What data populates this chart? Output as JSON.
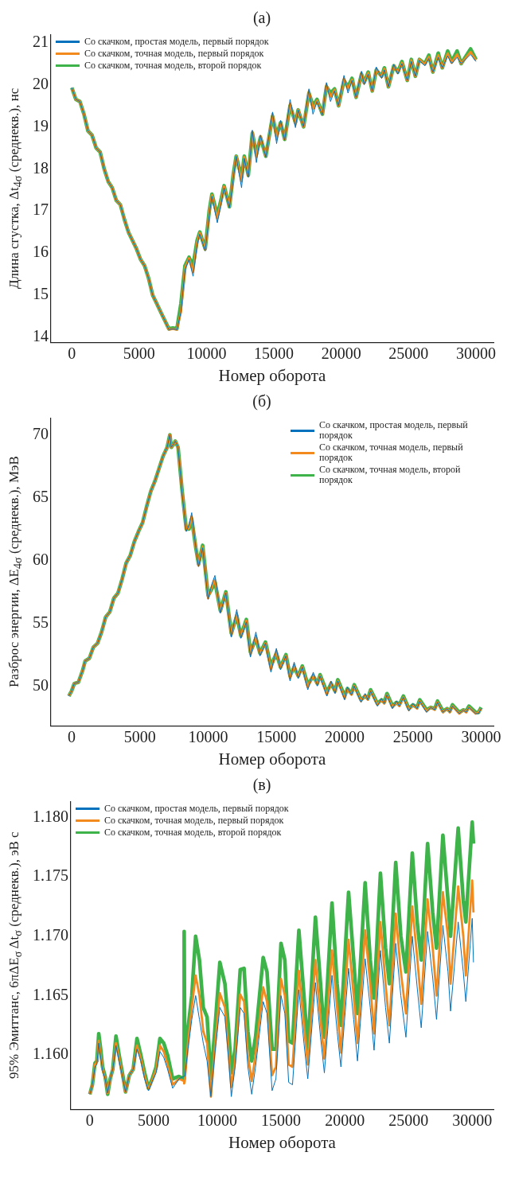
{
  "chart_data": [
    {
      "type": "line",
      "title": "(а)",
      "xlabel": "Номер оборота",
      "ylabel": "Длина сгустка, Δt$_{4σ}$  (среднекв.), нс",
      "xlim": [
        -1550,
        31300
      ],
      "ylim": [
        13.87,
        21.18
      ],
      "xticks": [
        0,
        5000,
        10000,
        15000,
        20000,
        25000,
        30000
      ],
      "yticks": [
        14,
        15,
        16,
        17,
        18,
        19,
        20,
        21
      ],
      "grid": false,
      "legend": "top left",
      "marker": "none",
      "line_style": "solid",
      "x": [
        0,
        300,
        600,
        900,
        1200,
        1500,
        1800,
        2100,
        2400,
        2700,
        3000,
        3300,
        3600,
        3900,
        4200,
        4500,
        4800,
        5100,
        5400,
        5700,
        6000,
        6300,
        6600,
        6900,
        7200,
        7500,
        7800,
        8100,
        8400,
        8700,
        9000,
        9300,
        9500,
        9900,
        10200,
        10400,
        10800,
        11100,
        11300,
        11700,
        12000,
        12200,
        12600,
        12800,
        13100,
        13400,
        13700,
        14000,
        14400,
        14900,
        15200,
        15500,
        15800,
        16200,
        16600,
        16800,
        17200,
        17600,
        17900,
        18200,
        18600,
        18900,
        19200,
        19500,
        19800,
        20200,
        20500,
        20800,
        21100,
        21500,
        21700,
        22000,
        22300,
        22600,
        23000,
        23200,
        23500,
        23900,
        24200,
        24500,
        24900,
        25200,
        25500,
        25800,
        26200,
        26500,
        26800,
        27200,
        27500,
        27900,
        28200,
        28600,
        28900,
        29600,
        30000
      ],
      "series": [
        {
          "name": "Со скачком, простая модель, первый порядок",
          "color": "#0072bd",
          "values": [
            19.93,
            19.65,
            19.6,
            19.3,
            18.9,
            18.8,
            18.5,
            18.4,
            18.0,
            17.7,
            17.55,
            17.25,
            17.15,
            16.8,
            16.5,
            16.3,
            16.1,
            15.85,
            15.7,
            15.4,
            15.0,
            14.8,
            14.6,
            14.4,
            14.18,
            14.2,
            14.18,
            14.6,
            15.6,
            15.85,
            15.45,
            16.2,
            16.45,
            16.05,
            16.9,
            17.35,
            16.72,
            17.2,
            17.55,
            17.08,
            17.8,
            18.3,
            17.55,
            18.25,
            17.8,
            18.92,
            18.15,
            18.8,
            18.28,
            19.35,
            18.6,
            19.15,
            18.68,
            19.65,
            18.98,
            19.4,
            19.0,
            19.9,
            19.3,
            19.6,
            19.28,
            20.05,
            19.6,
            19.85,
            19.5,
            20.22,
            19.8,
            20.1,
            19.7,
            20.32,
            20.0,
            20.25,
            19.85,
            20.42,
            20.15,
            20.35,
            19.95,
            20.48,
            20.25,
            20.5,
            20.1,
            20.55,
            20.2,
            20.58,
            20.45,
            20.62,
            20.3,
            20.65,
            20.4,
            20.68,
            20.5,
            20.65,
            20.5,
            20.72,
            20.55
          ]
        },
        {
          "name": "Со скачком, точная модель, первый порядок",
          "color": "#f28a1e",
          "values": [
            19.93,
            19.65,
            19.6,
            19.3,
            18.9,
            18.8,
            18.5,
            18.4,
            18.0,
            17.7,
            17.55,
            17.25,
            17.15,
            16.8,
            16.5,
            16.3,
            16.1,
            15.85,
            15.7,
            15.4,
            15.0,
            14.8,
            14.6,
            14.4,
            14.18,
            14.2,
            14.18,
            14.6,
            15.65,
            15.88,
            15.55,
            16.25,
            16.48,
            16.08,
            16.95,
            17.38,
            16.82,
            17.25,
            17.58,
            17.1,
            17.85,
            18.3,
            17.7,
            18.28,
            17.83,
            18.88,
            18.28,
            18.78,
            18.3,
            19.3,
            18.7,
            19.12,
            18.7,
            19.55,
            19.05,
            19.4,
            19.0,
            19.85,
            19.42,
            19.62,
            19.3,
            20.0,
            19.7,
            19.88,
            19.5,
            20.15,
            19.88,
            20.12,
            19.7,
            20.28,
            20.03,
            20.28,
            19.85,
            20.38,
            20.18,
            20.38,
            19.95,
            20.46,
            20.28,
            20.52,
            20.1,
            20.58,
            20.2,
            20.6,
            20.48,
            20.66,
            20.3,
            20.7,
            20.4,
            20.74,
            20.52,
            20.72,
            20.5,
            20.78,
            20.58
          ]
        },
        {
          "name": "Со скачком, точная модель, второй порядок",
          "color": "#3db34a",
          "values": [
            19.93,
            19.65,
            19.6,
            19.3,
            18.9,
            18.8,
            18.5,
            18.4,
            18.0,
            17.7,
            17.55,
            17.25,
            17.15,
            16.8,
            16.5,
            16.3,
            16.1,
            15.85,
            15.7,
            15.4,
            15.0,
            14.8,
            14.6,
            14.4,
            14.2,
            14.22,
            14.2,
            14.8,
            15.7,
            15.9,
            15.7,
            16.3,
            16.5,
            16.1,
            17.0,
            17.4,
            16.9,
            17.3,
            17.6,
            17.1,
            17.9,
            18.3,
            17.8,
            18.3,
            17.85,
            18.85,
            18.35,
            18.75,
            18.3,
            19.25,
            18.8,
            19.1,
            18.7,
            19.5,
            19.1,
            19.4,
            19.0,
            19.8,
            19.5,
            19.65,
            19.3,
            19.95,
            19.8,
            19.9,
            19.5,
            20.1,
            19.95,
            20.15,
            19.7,
            20.25,
            20.05,
            20.3,
            19.85,
            20.35,
            20.2,
            20.4,
            19.95,
            20.45,
            20.3,
            20.55,
            20.1,
            20.6,
            20.2,
            20.6,
            20.5,
            20.7,
            20.3,
            20.75,
            20.4,
            20.8,
            20.55,
            20.8,
            20.5,
            20.85,
            20.6
          ]
        }
      ]
    },
    {
      "type": "line",
      "title": "(б)",
      "xlabel": "Номер оборота",
      "ylabel": "Разброс энергии, ΔE$_{4σ}$  (среднекв.), МэВ",
      "xlim": [
        -1510,
        30900
      ],
      "ylim": [
        46.8,
        71.3
      ],
      "xticks": [
        0,
        5000,
        10000,
        15000,
        20000,
        25000,
        30000
      ],
      "yticks": [
        50,
        55,
        60,
        65,
        70
      ],
      "grid": false,
      "legend": "top right",
      "marker": "none",
      "line_style": "solid",
      "x": [
        -200,
        0,
        200,
        500,
        800,
        1000,
        1300,
        1600,
        1900,
        2200,
        2500,
        2800,
        3100,
        3400,
        3700,
        4000,
        4300,
        4600,
        4900,
        5200,
        5500,
        5800,
        6100,
        6400,
        6700,
        7000,
        7200,
        7300,
        7500,
        7600,
        7800,
        8100,
        8400,
        8600,
        8800,
        9100,
        9300,
        9600,
        10000,
        10300,
        10500,
        10900,
        11300,
        11700,
        12100,
        12400,
        12800,
        13100,
        13500,
        13800,
        14200,
        14600,
        15000,
        15300,
        15700,
        16000,
        16300,
        16600,
        16900,
        17300,
        17700,
        18000,
        18200,
        18700,
        19000,
        19300,
        19500,
        20000,
        20200,
        20500,
        20700,
        21200,
        21500,
        21700,
        21900,
        22400,
        22700,
        22900,
        23100,
        23500,
        23800,
        24000,
        24300,
        24700,
        25000,
        25300,
        25500,
        26000,
        26300,
        26600,
        26800,
        27200,
        27500,
        27700,
        27900,
        28400,
        28700,
        28900,
        29100,
        29600,
        29800,
        30000
      ],
      "series": [
        {
          "name": "Со скачком, простая модель, первый порядок",
          "color": "#0072bd",
          "values": [
            49.2,
            49.6,
            50.2,
            50.3,
            51.2,
            52.0,
            52.2,
            53.1,
            53.4,
            54.3,
            55.5,
            55.9,
            57.0,
            57.4,
            58.5,
            59.8,
            60.4,
            61.5,
            62.3,
            63.0,
            64.3,
            65.5,
            66.3,
            67.3,
            68.3,
            69.0,
            70.0,
            69.0,
            69.3,
            69.5,
            69.0,
            65.3,
            62.3,
            62.8,
            63.8,
            61.0,
            59.5,
            61.0,
            56.9,
            58.2,
            58.8,
            55.8,
            57.4,
            53.9,
            56.1,
            53.8,
            55.1,
            52.3,
            54.3,
            52.4,
            53.4,
            51.1,
            53.0,
            51.3,
            52.4,
            50.4,
            51.9,
            50.6,
            51.5,
            49.7,
            51.1,
            50.0,
            50.8,
            49.2,
            50.4,
            49.4,
            50.4,
            48.9,
            49.9,
            49.3,
            50.0,
            48.7,
            49.4,
            48.9,
            49.6,
            48.4,
            49.0,
            48.6,
            49.3,
            48.2,
            48.8,
            48.4,
            49.1,
            48.0,
            48.6,
            48.2,
            48.8,
            47.9,
            48.3,
            48.1,
            48.7,
            47.9,
            48.2,
            47.9,
            48.4,
            47.8,
            48.1,
            47.9,
            48.3,
            47.8,
            47.8,
            48.2
          ]
        },
        {
          "name": "Со скачком, точная модель, первый порядок",
          "color": "#f28a1e",
          "values": [
            49.2,
            49.6,
            50.2,
            50.3,
            51.2,
            52.0,
            52.2,
            53.1,
            53.4,
            54.3,
            55.5,
            55.9,
            57.0,
            57.4,
            58.5,
            59.8,
            60.4,
            61.5,
            62.3,
            63.0,
            64.3,
            65.5,
            66.3,
            67.3,
            68.3,
            69.0,
            70.0,
            69.0,
            69.3,
            69.5,
            69.0,
            65.4,
            62.4,
            62.6,
            63.5,
            61.0,
            59.6,
            61.1,
            57.0,
            58.0,
            58.5,
            55.9,
            57.4,
            54.0,
            55.8,
            53.9,
            55.2,
            52.5,
            54.0,
            52.5,
            53.4,
            51.3,
            52.8,
            51.4,
            52.4,
            50.6,
            51.7,
            50.7,
            51.5,
            49.9,
            50.9,
            50.1,
            50.8,
            49.3,
            50.3,
            49.5,
            50.4,
            49.0,
            49.8,
            49.3,
            50.0,
            48.8,
            49.3,
            48.9,
            49.6,
            48.5,
            48.9,
            48.6,
            49.3,
            48.3,
            48.7,
            48.4,
            49.1,
            48.1,
            48.5,
            48.2,
            48.8,
            48.0,
            48.3,
            48.1,
            48.7,
            47.9,
            48.2,
            47.9,
            48.4,
            47.8,
            48.1,
            47.9,
            48.3,
            47.8,
            47.9,
            48.2
          ]
        },
        {
          "name": "Со скачком, точная модель, второй порядок",
          "color": "#3db34a",
          "values": [
            49.2,
            49.6,
            50.2,
            50.3,
            51.2,
            52.0,
            52.2,
            53.1,
            53.4,
            54.3,
            55.5,
            55.9,
            57.0,
            57.4,
            58.5,
            59.8,
            60.4,
            61.5,
            62.3,
            63.0,
            64.3,
            65.5,
            66.3,
            67.3,
            68.3,
            69.0,
            70.0,
            69.0,
            69.3,
            69.5,
            69.0,
            65.5,
            62.5,
            62.5,
            63.3,
            61.0,
            59.7,
            61.2,
            57.2,
            57.8,
            58.3,
            56.0,
            57.5,
            54.2,
            55.6,
            54.0,
            55.3,
            52.7,
            53.8,
            52.6,
            53.5,
            51.6,
            52.6,
            51.5,
            52.5,
            50.8,
            51.5,
            50.8,
            51.6,
            50.1,
            50.8,
            50.2,
            50.9,
            49.5,
            50.2,
            49.6,
            50.5,
            49.2,
            49.8,
            49.4,
            50.1,
            48.9,
            49.2,
            49.0,
            49.7,
            48.6,
            48.9,
            48.7,
            49.4,
            48.4,
            48.7,
            48.5,
            49.2,
            48.2,
            48.5,
            48.3,
            48.9,
            48.1,
            48.3,
            48.2,
            48.8,
            48.0,
            48.2,
            48.0,
            48.5,
            47.9,
            48.1,
            48.0,
            48.4,
            47.9,
            47.9,
            48.3
          ]
        }
      ]
    },
    {
      "type": "line",
      "title": "(в)",
      "xlabel": "Номер оборота",
      "ylabel": "95% Эмиттанс, 6πΔE$_{σ}$ Δt$_{σ}$ (среднекв.), эВ с",
      "xlim": [
        -1490,
        31670
      ],
      "ylim": [
        1.1554,
        1.1813
      ],
      "xticks": [
        0,
        5000,
        10000,
        15000,
        20000,
        25000,
        30000
      ],
      "yticks": [
        {
          "value": 1.16,
          "label": "1.160"
        },
        {
          "value": 1.165,
          "label": "1.165"
        },
        {
          "value": 1.17,
          "label": "1.170"
        },
        {
          "value": 1.175,
          "label": "1.175"
        },
        {
          "value": 1.18,
          "label": "1.180"
        }
      ],
      "grid": false,
      "legend": "top left",
      "marker": "none",
      "line_style": "solid",
      "x": [
        0,
        200,
        400,
        550,
        700,
        850,
        1000,
        1200,
        1400,
        1600,
        1800,
        2050,
        2300,
        2600,
        2800,
        3100,
        3400,
        3700,
        4000,
        4300,
        4600,
        4900,
        5200,
        5500,
        5800,
        6100,
        6500,
        7000,
        7400,
        7401,
        7450,
        7700,
        8000,
        8300,
        8600,
        8900,
        9200,
        9500,
        9800,
        10200,
        10600,
        10900,
        11100,
        11400,
        11800,
        12100,
        12400,
        12700,
        13000,
        13600,
        13900,
        14300,
        14600,
        15000,
        15300,
        15600,
        15900,
        16400,
        16800,
        17100,
        17700,
        18100,
        18400,
        19000,
        19400,
        19700,
        20300,
        20700,
        21000,
        21600,
        22000,
        22300,
        22800,
        23200,
        23500,
        24000,
        24400,
        24800,
        25300,
        25700,
        26000,
        26500,
        26900,
        27200,
        27700,
        28100,
        28300,
        28900,
        29300,
        29500,
        30000,
        30100
      ],
      "series": [
        {
          "name": "Со скачком, простая модель, первый порядок",
          "color": "#0072bd",
          "values": [
            1.1567,
            1.1575,
            1.159,
            1.1592,
            1.161,
            1.1598,
            1.1587,
            1.158,
            1.1568,
            1.158,
            1.1588,
            1.1608,
            1.1595,
            1.158,
            1.1569,
            1.1583,
            1.1588,
            1.1605,
            1.1595,
            1.158,
            1.157,
            1.1578,
            1.1585,
            1.1603,
            1.1598,
            1.1588,
            1.1572,
            1.158,
            1.1582,
            1.1582,
            1.1582,
            1.1605,
            1.163,
            1.165,
            1.163,
            1.161,
            1.1595,
            1.1565,
            1.16,
            1.164,
            1.1632,
            1.1595,
            1.1565,
            1.159,
            1.164,
            1.1635,
            1.159,
            1.1567,
            1.159,
            1.1645,
            1.1635,
            1.157,
            1.158,
            1.165,
            1.1635,
            1.1577,
            1.1575,
            1.1655,
            1.161,
            1.158,
            1.1661,
            1.1615,
            1.1585,
            1.1667,
            1.162,
            1.159,
            1.1673,
            1.163,
            1.1595,
            1.1681,
            1.164,
            1.1604,
            1.1688,
            1.164,
            1.161,
            1.1694,
            1.165,
            1.1615,
            1.17,
            1.1655,
            1.1623,
            1.1704,
            1.1665,
            1.163,
            1.1709,
            1.167,
            1.1637,
            1.1712,
            1.167,
            1.1645,
            1.1715,
            1.1678
          ]
        },
        {
          "name": "Со скачком, точная модель, первый порядок",
          "color": "#f28a1e",
          "values": [
            1.1567,
            1.1575,
            1.1592,
            1.1594,
            1.1612,
            1.16,
            1.1588,
            1.158,
            1.1568,
            1.158,
            1.1588,
            1.161,
            1.1597,
            1.158,
            1.1569,
            1.1583,
            1.1588,
            1.1608,
            1.1597,
            1.1582,
            1.1571,
            1.1579,
            1.1588,
            1.1608,
            1.1603,
            1.1592,
            1.1575,
            1.158,
            1.1578,
            1.1576,
            1.1578,
            1.161,
            1.164,
            1.1667,
            1.165,
            1.162,
            1.161,
            1.1565,
            1.1605,
            1.1652,
            1.164,
            1.16,
            1.1573,
            1.1595,
            1.1651,
            1.1645,
            1.16,
            1.1578,
            1.16,
            1.1657,
            1.1645,
            1.1583,
            1.159,
            1.1664,
            1.165,
            1.1592,
            1.159,
            1.1671,
            1.1625,
            1.1592,
            1.168,
            1.163,
            1.1597,
            1.1688,
            1.164,
            1.1602,
            1.1697,
            1.165,
            1.161,
            1.1705,
            1.166,
            1.1618,
            1.1712,
            1.166,
            1.1625,
            1.1719,
            1.167,
            1.1635,
            1.1725,
            1.168,
            1.1643,
            1.1731,
            1.169,
            1.165,
            1.1737,
            1.17,
            1.166,
            1.1742,
            1.17,
            1.1667,
            1.1747,
            1.172
          ]
        },
        {
          "name": "Со скачком, точная модель, второй порядок",
          "color": "#3db34a",
          "values": [
            1.1567,
            1.1575,
            1.1593,
            1.1595,
            1.1618,
            1.1605,
            1.159,
            1.1582,
            1.1567,
            1.158,
            1.1588,
            1.1616,
            1.16,
            1.1582,
            1.1569,
            1.1583,
            1.1588,
            1.1614,
            1.16,
            1.1585,
            1.1572,
            1.158,
            1.159,
            1.1614,
            1.161,
            1.16,
            1.158,
            1.1582,
            1.158,
            1.1704,
            1.1595,
            1.1622,
            1.165,
            1.17,
            1.168,
            1.164,
            1.1632,
            1.158,
            1.162,
            1.1678,
            1.166,
            1.162,
            1.1585,
            1.1605,
            1.1672,
            1.1673,
            1.162,
            1.1595,
            1.1615,
            1.1682,
            1.167,
            1.1605,
            1.1605,
            1.1694,
            1.168,
            1.1612,
            1.161,
            1.1705,
            1.165,
            1.1605,
            1.1716,
            1.166,
            1.1615,
            1.1728,
            1.166,
            1.1625,
            1.1737,
            1.168,
            1.1635,
            1.1745,
            1.168,
            1.1648,
            1.1753,
            1.169,
            1.166,
            1.1762,
            1.17,
            1.167,
            1.177,
            1.171,
            1.168,
            1.1778,
            1.172,
            1.169,
            1.1785,
            1.173,
            1.17,
            1.1791,
            1.173,
            1.1712,
            1.1796,
            1.1778
          ]
        }
      ]
    }
  ]
}
